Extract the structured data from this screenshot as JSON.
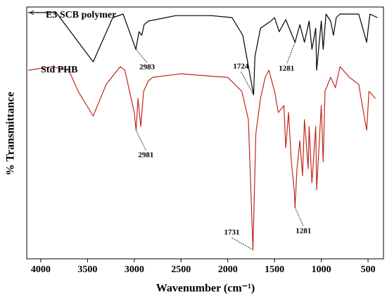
{
  "chart_data": {
    "type": "line",
    "xlabel": "Wavenumber (cm⁻¹)",
    "ylabel": "% Transmittance",
    "xlim": [
      4150,
      335
    ],
    "xticks": [
      4000,
      3500,
      3000,
      2500,
      2000,
      1500,
      1000,
      500
    ],
    "ylim": [
      0,
      100
    ],
    "series": [
      {
        "name": "E3 SCB polymer",
        "color": "#000000",
        "x": [
          4135,
          3835,
          3440,
          3230,
          3120,
          2983,
          2950,
          2920,
          2895,
          2850,
          2555,
          2180,
          1955,
          1840,
          1724,
          1710,
          1650,
          1540,
          1500,
          1450,
          1380,
          1281,
          1230,
          1180,
          1130,
          1100,
          1060,
          1050,
          1000,
          980,
          950,
          900,
          870,
          840,
          800,
          600,
          515,
          480,
          400
        ],
        "values": [
          97.8,
          97.8,
          78.2,
          95.8,
          97.2,
          83.2,
          90.2,
          88.8,
          93.0,
          94.4,
          96.6,
          96.6,
          95.8,
          88.8,
          65.1,
          80.4,
          91.6,
          94.4,
          95.8,
          90.2,
          95.0,
          86.0,
          93.0,
          86.0,
          94.4,
          83.2,
          91.6,
          74.9,
          94.4,
          83.2,
          97.2,
          94.4,
          88.8,
          95.8,
          97.2,
          97.2,
          86.0,
          97.2,
          95.8
        ]
      },
      {
        "name": "Std PHB",
        "color": "#c0281c",
        "x": [
          4135,
          3880,
          3700,
          3600,
          3440,
          3300,
          3150,
          3100,
          3000,
          2981,
          2960,
          2930,
          2900,
          2850,
          2800,
          2500,
          2200,
          2000,
          1850,
          1780,
          1731,
          1700,
          1650,
          1600,
          1560,
          1500,
          1460,
          1400,
          1380,
          1350,
          1320,
          1290,
          1281,
          1260,
          1230,
          1200,
          1180,
          1140,
          1130,
          1100,
          1060,
          1050,
          1000,
          980,
          960,
          900,
          850,
          800,
          700,
          600,
          515,
          490,
          420
        ],
        "values": [
          74.9,
          76.3,
          74.9,
          66.5,
          56.7,
          69.3,
          76.3,
          74.9,
          58.1,
          51.1,
          63.7,
          52.5,
          66.5,
          70.7,
          72.1,
          73.5,
          72.6,
          72.1,
          66.5,
          55.3,
          3.6,
          49.7,
          63.7,
          72.1,
          74.9,
          66.5,
          58.1,
          60.9,
          44.1,
          58.1,
          38.5,
          27.4,
          20.4,
          35.8,
          46.9,
          33.0,
          55.3,
          35.8,
          52.5,
          30.2,
          52.5,
          27.4,
          60.9,
          38.5,
          66.5,
          72.1,
          67.9,
          76.3,
          72.1,
          69.3,
          51.1,
          66.5,
          63.7
        ]
      }
    ],
    "annotations": [
      {
        "series": 0,
        "x": 2983
      },
      {
        "series": 0,
        "x": 1724
      },
      {
        "series": 0,
        "x": 1281
      },
      {
        "series": 1,
        "x": 2981
      },
      {
        "series": 1,
        "x": 1731
      },
      {
        "series": 1,
        "x": 1281
      }
    ]
  }
}
